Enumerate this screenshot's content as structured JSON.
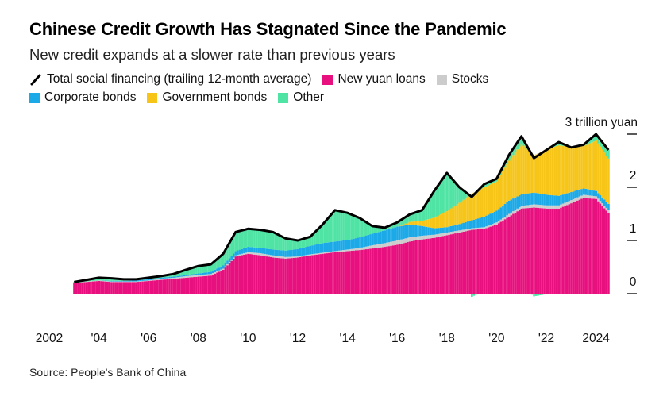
{
  "chart_data": {
    "type": "bar",
    "stacked": true,
    "title": "Chinese Credit Growth Has Stagnated Since the Pandemic",
    "subtitle": "New credit expands at a slower rate than previous years",
    "source": "Source: People's Bank of China",
    "ylabel": "3 trillion yuan",
    "ylim": [
      -0.3,
      3.2
    ],
    "y_ticks": [
      0,
      1,
      2,
      3
    ],
    "y_tick_labels": [
      "0",
      "1",
      "2",
      "3 trillion yuan"
    ],
    "x_ticks": [
      2002,
      2004,
      2006,
      2008,
      2010,
      2012,
      2014,
      2016,
      2018,
      2020,
      2022,
      2024
    ],
    "x_tick_labels": [
      "2002",
      "'04",
      "'06",
      "'08",
      "'10",
      "'12",
      "'14",
      "'16",
      "'18",
      "'20",
      "'22",
      "2024"
    ],
    "legend": [
      {
        "name": "Total social financing (trailing 12-month average)",
        "type": "line",
        "color": "#000000"
      },
      {
        "name": "New yuan loans",
        "color": "#e8107e"
      },
      {
        "name": "Stocks",
        "color": "#cccccc"
      },
      {
        "name": "Corporate bonds",
        "color": "#1ba9e8"
      },
      {
        "name": "Government bonds",
        "color": "#f6c518"
      },
      {
        "name": "Other",
        "color": "#4fe3a4"
      }
    ],
    "x": [
      2003.0,
      2003.5,
      2004.0,
      2004.5,
      2005.0,
      2005.5,
      2006.0,
      2006.5,
      2007.0,
      2007.5,
      2008.0,
      2008.5,
      2009.0,
      2009.5,
      2010.0,
      2010.5,
      2011.0,
      2011.5,
      2012.0,
      2012.5,
      2013.0,
      2013.5,
      2014.0,
      2014.5,
      2015.0,
      2015.5,
      2016.0,
      2016.5,
      2017.0,
      2017.5,
      2018.0,
      2018.5,
      2019.0,
      2019.5,
      2020.0,
      2020.5,
      2021.0,
      2021.5,
      2022.0,
      2022.5,
      2023.0,
      2023.5,
      2024.0,
      2024.5
    ],
    "series": [
      {
        "name": "New yuan loans",
        "values": [
          0.2,
          0.22,
          0.24,
          0.22,
          0.22,
          0.22,
          0.24,
          0.26,
          0.28,
          0.3,
          0.32,
          0.34,
          0.45,
          0.7,
          0.75,
          0.72,
          0.68,
          0.66,
          0.68,
          0.72,
          0.75,
          0.78,
          0.8,
          0.82,
          0.85,
          0.88,
          0.92,
          0.98,
          1.02,
          1.05,
          1.1,
          1.15,
          1.2,
          1.22,
          1.3,
          1.45,
          1.6,
          1.62,
          1.6,
          1.6,
          1.7,
          1.8,
          1.78,
          1.52
        ]
      },
      {
        "name": "Stocks",
        "values": [
          0.01,
          0.01,
          0.01,
          0.01,
          0.01,
          0.01,
          0.01,
          0.02,
          0.02,
          0.03,
          0.03,
          0.03,
          0.02,
          0.02,
          0.03,
          0.04,
          0.04,
          0.03,
          0.02,
          0.02,
          0.02,
          0.02,
          0.03,
          0.04,
          0.06,
          0.07,
          0.08,
          0.08,
          0.07,
          0.06,
          0.05,
          0.04,
          0.03,
          0.03,
          0.04,
          0.05,
          0.05,
          0.06,
          0.06,
          0.06,
          0.06,
          0.06,
          0.05,
          0.05
        ]
      },
      {
        "name": "Corporate bonds",
        "values": [
          0,
          0,
          0,
          0.01,
          0.01,
          0.02,
          0.02,
          0.02,
          0.02,
          0.02,
          0.03,
          0.04,
          0.06,
          0.08,
          0.1,
          0.1,
          0.11,
          0.12,
          0.14,
          0.16,
          0.18,
          0.18,
          0.18,
          0.2,
          0.22,
          0.24,
          0.26,
          0.24,
          0.18,
          0.12,
          0.1,
          0.12,
          0.15,
          0.2,
          0.22,
          0.25,
          0.22,
          0.22,
          0.2,
          0.18,
          0.15,
          0.12,
          0.1,
          0.12
        ]
      },
      {
        "name": "Government bonds",
        "values": [
          0,
          0,
          0,
          0,
          0,
          0,
          0,
          0,
          0,
          0,
          0,
          0,
          0,
          0,
          0,
          0,
          0,
          0,
          0,
          0,
          0,
          0,
          0,
          0,
          0,
          0,
          0,
          0.05,
          0.1,
          0.2,
          0.3,
          0.4,
          0.5,
          0.55,
          0.55,
          0.75,
          0.95,
          0.7,
          0.85,
          0.95,
          0.85,
          0.8,
          0.95,
          0.85
        ]
      },
      {
        "name": "Other",
        "values": [
          0.01,
          0.03,
          0.05,
          0.05,
          0.03,
          0.02,
          0.03,
          0.03,
          0.05,
          0.1,
          0.14,
          0.14,
          0.22,
          0.36,
          0.34,
          0.34,
          0.33,
          0.23,
          0.16,
          0.17,
          0.35,
          0.59,
          0.51,
          0.36,
          0.14,
          0.05,
          0.08,
          0.14,
          0.2,
          0.51,
          0.72,
          0.29,
          -0.06,
          0.06,
          0.05,
          0.11,
          0.14,
          -0.05,
          -0.01,
          0.06,
          -0.01,
          0.02,
          0.12,
          0.16
        ]
      },
      {
        "name": "Total social financing (trailing 12-month average)",
        "type": "line",
        "values": [
          0.22,
          0.26,
          0.3,
          0.29,
          0.27,
          0.27,
          0.3,
          0.33,
          0.37,
          0.45,
          0.52,
          0.55,
          0.75,
          1.16,
          1.22,
          1.2,
          1.16,
          1.04,
          1.0,
          1.07,
          1.3,
          1.57,
          1.52,
          1.42,
          1.27,
          1.24,
          1.34,
          1.49,
          1.57,
          1.94,
          2.27,
          2.0,
          1.82,
          2.06,
          2.16,
          2.61,
          2.96,
          2.55,
          2.7,
          2.85,
          2.75,
          2.8,
          3.0,
          2.7
        ]
      }
    ]
  }
}
